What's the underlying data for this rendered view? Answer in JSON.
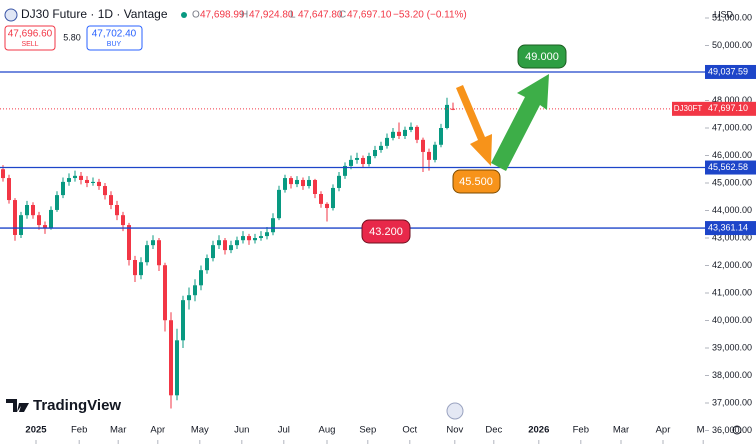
{
  "header": {
    "symbol": "DJ30 Future · 1D · Vantage",
    "ohlc": [
      {
        "key": "O",
        "text": "47,698.99"
      },
      {
        "key": "H",
        "text": "47,924.80"
      },
      {
        "key": "L",
        "text": "47,647.80"
      },
      {
        "key": "C",
        "text": "47,697.10"
      }
    ],
    "change": "−53.20 (−0.11%)"
  },
  "trade": {
    "sell_price": "47,696.60",
    "sell": "SELL",
    "spread": "5.80",
    "buy_price": "47,702.40",
    "buy": "BUY"
  },
  "branding": "TradingView",
  "chart_data": {
    "type": "candlestick",
    "currency": "USD",
    "up_color": "#089981",
    "down_color": "#f23645",
    "line_color": "#1d45c9",
    "grid": false,
    "candles": [
      [
        45500,
        45650,
        45050,
        45180
      ],
      [
        45180,
        45300,
        44250,
        44380
      ],
      [
        44380,
        44450,
        42900,
        43110
      ],
      [
        43110,
        43950,
        43000,
        43830
      ],
      [
        43830,
        44350,
        43700,
        44200
      ],
      [
        44200,
        44300,
        43700,
        43830
      ],
      [
        43830,
        43950,
        43300,
        43470
      ],
      [
        43470,
        43600,
        43150,
        43360
      ],
      [
        43360,
        44150,
        43300,
        44020
      ],
      [
        44020,
        44700,
        43950,
        44560
      ],
      [
        44560,
        45200,
        44450,
        45040
      ],
      [
        45040,
        45350,
        44900,
        45180
      ],
      [
        45180,
        45450,
        45050,
        45260
      ],
      [
        45260,
        45400,
        44950,
        45110
      ],
      [
        45110,
        45250,
        44850,
        45000
      ],
      [
        45000,
        45200,
        44900,
        45040
      ],
      [
        45040,
        45150,
        44750,
        44890
      ],
      [
        44890,
        45000,
        44400,
        44560
      ],
      [
        44560,
        44700,
        44050,
        44200
      ],
      [
        44200,
        44350,
        43650,
        43830
      ],
      [
        43830,
        43950,
        43250,
        43470
      ],
      [
        43470,
        43550,
        42000,
        42200
      ],
      [
        42200,
        42350,
        41400,
        41650
      ],
      [
        41650,
        42300,
        41500,
        42120
      ],
      [
        42120,
        42900,
        42000,
        42740
      ],
      [
        42740,
        43100,
        42600,
        42920
      ],
      [
        42920,
        43000,
        41800,
        42010
      ],
      [
        42010,
        42100,
        39600,
        40010
      ],
      [
        40010,
        40300,
        36800,
        37280
      ],
      [
        37280,
        39700,
        37100,
        39280
      ],
      [
        39280,
        40900,
        39000,
        40740
      ],
      [
        40740,
        41200,
        40400,
        40920
      ],
      [
        40920,
        41500,
        40700,
        41280
      ],
      [
        41280,
        42000,
        41100,
        41830
      ],
      [
        41830,
        42400,
        41700,
        42270
      ],
      [
        42270,
        42900,
        42150,
        42740
      ],
      [
        42740,
        43100,
        42600,
        42920
      ],
      [
        42920,
        43000,
        42400,
        42560
      ],
      [
        42560,
        42900,
        42450,
        42740
      ],
      [
        42740,
        43050,
        42600,
        42920
      ],
      [
        42920,
        43250,
        42800,
        43070
      ],
      [
        43070,
        43150,
        42750,
        42920
      ],
      [
        42920,
        43150,
        42800,
        43000
      ],
      [
        43000,
        43250,
        42900,
        43070
      ],
      [
        43070,
        43400,
        42950,
        43210
      ],
      [
        43210,
        43900,
        43100,
        43720
      ],
      [
        43720,
        44900,
        43650,
        44750
      ],
      [
        44750,
        45300,
        44650,
        45180
      ],
      [
        45180,
        45250,
        44800,
        44960
      ],
      [
        44960,
        45250,
        44850,
        45110
      ],
      [
        45110,
        45200,
        44750,
        44890
      ],
      [
        44890,
        45250,
        44800,
        45110
      ],
      [
        45110,
        45150,
        44450,
        44600
      ],
      [
        44600,
        44700,
        44100,
        44240
      ],
      [
        44240,
        44300,
        43600,
        44090
      ],
      [
        44090,
        44950,
        44000,
        44820
      ],
      [
        44820,
        45400,
        44700,
        45260
      ],
      [
        45260,
        45750,
        45150,
        45620
      ],
      [
        45620,
        46000,
        45500,
        45840
      ],
      [
        45840,
        46100,
        45700,
        45910
      ],
      [
        45910,
        46000,
        45550,
        45690
      ],
      [
        45690,
        46100,
        45600,
        45980
      ],
      [
        45980,
        46350,
        45900,
        46200
      ],
      [
        46200,
        46500,
        46100,
        46350
      ],
      [
        46350,
        46800,
        46250,
        46640
      ],
      [
        46640,
        47000,
        46550,
        46860
      ],
      [
        46860,
        47200,
        46600,
        46710
      ],
      [
        46710,
        47050,
        46600,
        46930
      ],
      [
        46930,
        47200,
        46850,
        47040
      ],
      [
        47040,
        47100,
        46450,
        46570
      ],
      [
        46570,
        46650,
        45400,
        46130
      ],
      [
        46130,
        46250,
        45450,
        45840
      ],
      [
        45840,
        46500,
        45750,
        46390
      ],
      [
        46390,
        47150,
        46300,
        47000
      ],
      [
        47000,
        48100,
        46950,
        47840
      ],
      [
        47698.99,
        47924.8,
        47647.8,
        47697.1
      ]
    ],
    "xlim": [
      0,
      117.5
    ],
    "xticks": [
      {
        "value": 6,
        "label": "2025"
      },
      {
        "value": 13.2,
        "label": "Feb"
      },
      {
        "value": 19.7,
        "label": "Mar"
      },
      {
        "value": 26.3,
        "label": "Apr"
      },
      {
        "value": 33.3,
        "label": "May"
      },
      {
        "value": 40.3,
        "label": "Jun"
      },
      {
        "value": 47.3,
        "label": "Jul"
      },
      {
        "value": 54.5,
        "label": "Aug"
      },
      {
        "value": 61.3,
        "label": "Sep"
      },
      {
        "value": 68.3,
        "label": "Oct"
      },
      {
        "value": 75.8,
        "label": "Nov"
      },
      {
        "value": 82.3,
        "label": "Dec"
      },
      {
        "value": 89.8,
        "label": "2026"
      },
      {
        "value": 96.8,
        "label": "Feb"
      },
      {
        "value": 103.5,
        "label": "Mar"
      },
      {
        "value": 110.5,
        "label": "Apr"
      },
      {
        "value": 117.2,
        "label": "Ma"
      }
    ],
    "ylim": [
      35800,
      51400
    ],
    "yticks": [
      {
        "value": 36000,
        "label": "36,000.00"
      },
      {
        "value": 37000,
        "label": "37,000.00"
      },
      {
        "value": 38000,
        "label": "38,000.00"
      },
      {
        "value": 39000,
        "label": "39,000.00"
      },
      {
        "value": 40000,
        "label": "40,000.00"
      },
      {
        "value": 41000,
        "label": "41,000.00"
      },
      {
        "value": 42000,
        "label": "42,000.00"
      },
      {
        "value": 43000,
        "label": "43,000.00"
      },
      {
        "value": 44000,
        "label": "44,000.00"
      },
      {
        "value": 45000,
        "label": "45,000.00"
      },
      {
        "value": 46000,
        "label": "46,000.00"
      },
      {
        "value": 47000,
        "label": "47,000.00"
      },
      {
        "value": 48000,
        "label": "48,000.00"
      },
      {
        "value": 50000,
        "label": "50,000.00"
      },
      {
        "value": 51000,
        "label": "51,000.00"
      }
    ],
    "price_lines": [
      {
        "value": 49037.59,
        "label": "49,037.59"
      },
      {
        "value": 45562.58,
        "label": "45,562.58"
      },
      {
        "value": 43361.14,
        "label": "43,361.14"
      }
    ],
    "last_price": {
      "value": 47697.1,
      "label": "47,697.10",
      "name": "DJ30FT"
    },
    "annotations": [
      "49.000",
      "45.500",
      "43.200"
    ]
  }
}
